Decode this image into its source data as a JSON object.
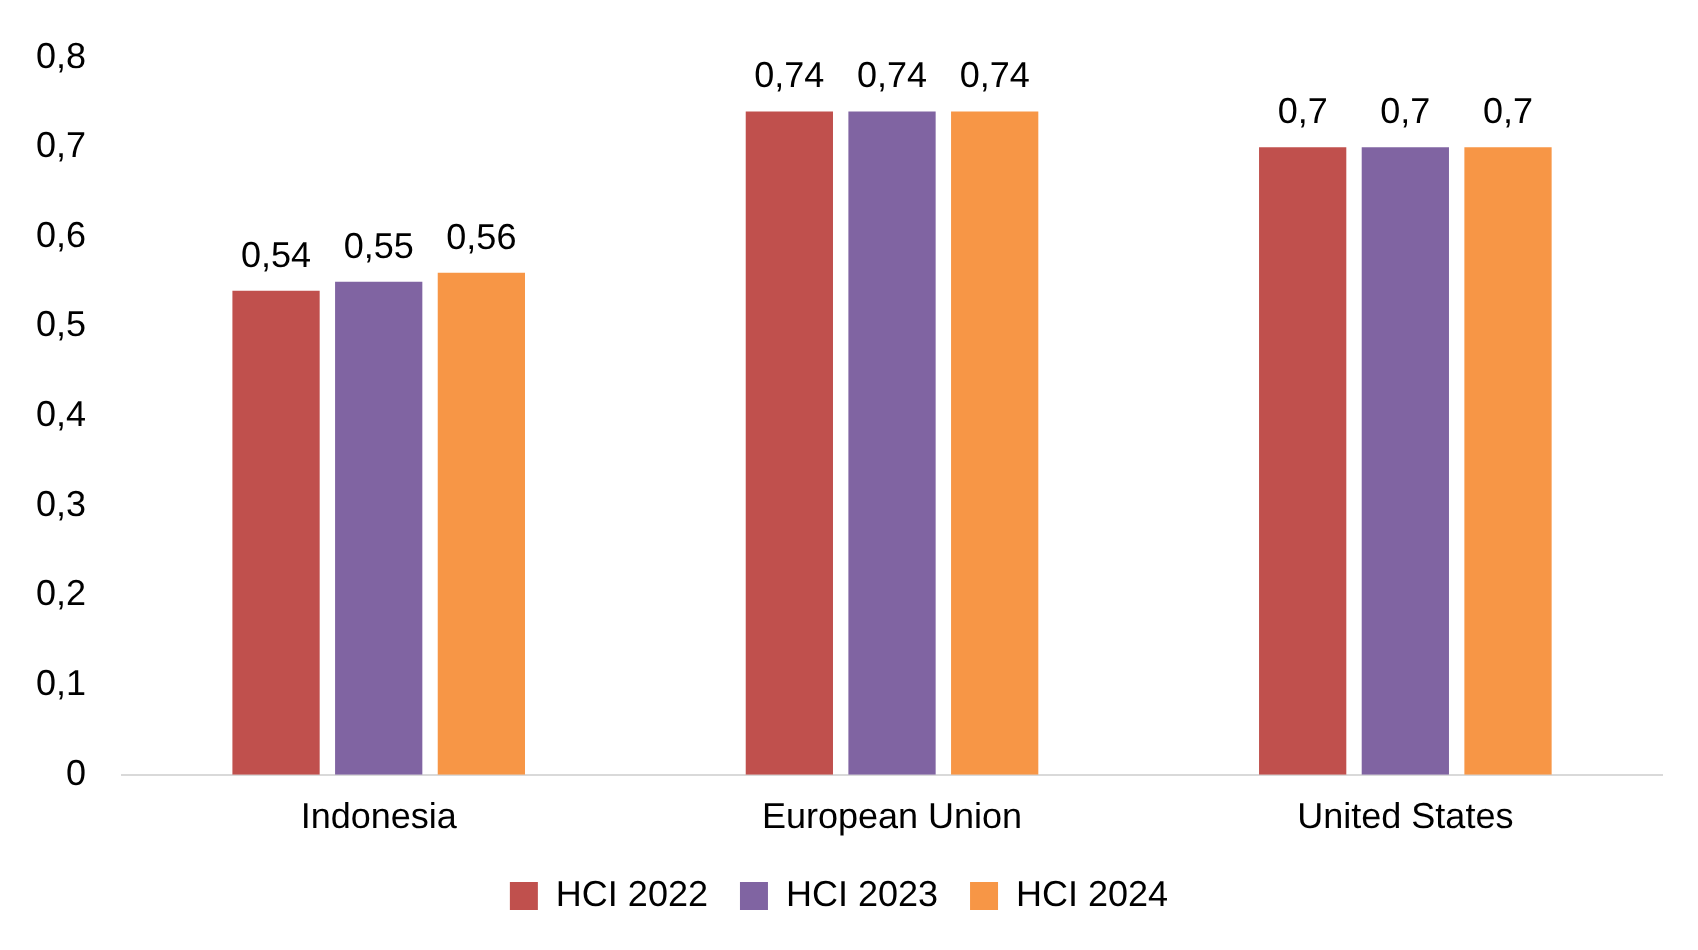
{
  "chart_data": {
    "type": "bar",
    "categories": [
      "Indonesia",
      "European Union",
      "United States"
    ],
    "series": [
      {
        "name": "HCI 2022",
        "color": "#c0504d",
        "values": [
          0.54,
          0.74,
          0.7
        ],
        "value_labels": [
          "0,54",
          "0,74",
          "0,7"
        ]
      },
      {
        "name": "HCI 2023",
        "color": "#8064a2",
        "values": [
          0.55,
          0.74,
          0.7
        ],
        "value_labels": [
          "0,55",
          "0,74",
          "0,7"
        ]
      },
      {
        "name": "HCI 2024",
        "color": "#f79646",
        "values": [
          0.56,
          0.74,
          0.7
        ],
        "value_labels": [
          "0,56",
          "0,74",
          "0,7"
        ]
      }
    ],
    "ylim": [
      0,
      0.8
    ],
    "yticks": [
      {
        "value": 0,
        "label": "0"
      },
      {
        "value": 0.1,
        "label": "0,1"
      },
      {
        "value": 0.2,
        "label": "0,2"
      },
      {
        "value": 0.3,
        "label": "0,3"
      },
      {
        "value": 0.4,
        "label": "0,4"
      },
      {
        "value": 0.5,
        "label": "0,5"
      },
      {
        "value": 0.6,
        "label": "0,6"
      },
      {
        "value": 0.7,
        "label": "0,7"
      },
      {
        "value": 0.8,
        "label": "0,8"
      }
    ],
    "grid": false,
    "legend": "bottom"
  }
}
